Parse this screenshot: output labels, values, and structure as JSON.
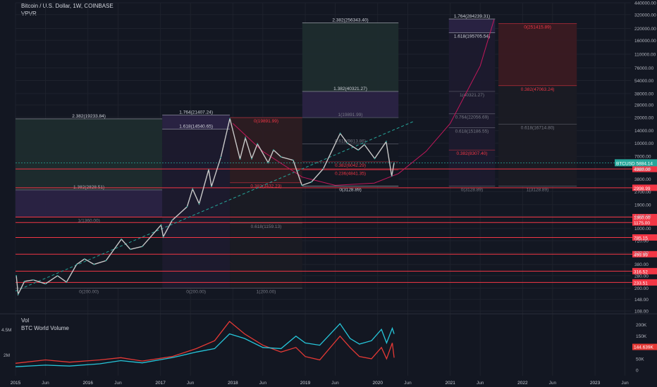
{
  "header": {
    "title": "Bitcoin / U.S. Dollar, 1W, COINBASE",
    "indicator": "VPVR"
  },
  "volume_pane": {
    "title": "Vol",
    "indicator": "BTC World Volume",
    "last_value": "144.639K",
    "axis_ticks": [
      {
        "label": "200K",
        "v": 200
      },
      {
        "label": "150K",
        "v": 150
      },
      {
        "label": "100K",
        "v": 100
      },
      {
        "label": "50K",
        "v": 50
      },
      {
        "label": "0",
        "v": 0
      }
    ],
    "left_ticks": [
      "4.5M",
      "2M"
    ]
  },
  "colors": {
    "background": "#131722",
    "support_line": "#f23645",
    "fib_red": "#f23645",
    "current_price": "#26a69a",
    "volume_cyan": "#26c6da",
    "volume_red": "#e53935",
    "curve_pink": "#c2185b",
    "trend_dashed": "#26a69a"
  },
  "chart_data": {
    "type": "line",
    "title": "Bitcoin / U.S. Dollar, 1W, COINBASE",
    "y_scale": "log",
    "ylim": [
      108,
      440000
    ],
    "xlim": [
      "2015-01-01",
      "2023-07-01"
    ],
    "grid": true,
    "price_axis_ticks": [
      440000,
      320000,
      220000,
      160000,
      110000,
      76000,
      54000,
      38000,
      28000,
      20000,
      14000,
      10000,
      7000,
      5000,
      3800,
      2700,
      1900,
      1400,
      1000,
      720,
      520,
      380,
      280,
      200,
      148,
      108
    ],
    "time_axis": [
      {
        "label": "2015",
        "date": "2015-01-01"
      },
      {
        "label": "Jun",
        "date": "2015-06-01"
      },
      {
        "label": "2016",
        "date": "2016-01-01"
      },
      {
        "label": "Jun",
        "date": "2016-06-01"
      },
      {
        "label": "2017",
        "date": "2017-01-01"
      },
      {
        "label": "Jun",
        "date": "2017-06-01"
      },
      {
        "label": "2018",
        "date": "2018-01-01"
      },
      {
        "label": "Jun",
        "date": "2018-06-01"
      },
      {
        "label": "2019",
        "date": "2019-01-01"
      },
      {
        "label": "Jun",
        "date": "2019-06-01"
      },
      {
        "label": "2020",
        "date": "2020-01-01"
      },
      {
        "label": "Jun",
        "date": "2020-06-01"
      },
      {
        "label": "2021",
        "date": "2021-01-01"
      },
      {
        "label": "Jun",
        "date": "2021-06-01"
      },
      {
        "label": "2022",
        "date": "2022-01-01"
      },
      {
        "label": "Jun",
        "date": "2022-06-01"
      },
      {
        "label": "2023",
        "date": "2023-01-01"
      },
      {
        "label": "Jun",
        "date": "2023-06-01"
      }
    ],
    "price_series": [
      [
        "2015-01-05",
        280
      ],
      [
        "2015-01-14",
        170
      ],
      [
        "2015-02-15",
        240
      ],
      [
        "2015-04-01",
        250
      ],
      [
        "2015-06-01",
        225
      ],
      [
        "2015-08-01",
        280
      ],
      [
        "2015-09-15",
        235
      ],
      [
        "2015-11-05",
        380
      ],
      [
        "2015-12-15",
        440
      ],
      [
        "2016-02-01",
        380
      ],
      [
        "2016-04-01",
        420
      ],
      [
        "2016-06-18",
        750
      ],
      [
        "2016-08-02",
        570
      ],
      [
        "2016-10-01",
        615
      ],
      [
        "2017-01-04",
        1100
      ],
      [
        "2017-01-15",
        800
      ],
      [
        "2017-03-01",
        1250
      ],
      [
        "2017-05-15",
        1800
      ],
      [
        "2017-06-12",
        2900
      ],
      [
        "2017-07-15",
        1950
      ],
      [
        "2017-09-01",
        4900
      ],
      [
        "2017-09-15",
        3100
      ],
      [
        "2017-11-01",
        6800
      ],
      [
        "2017-12-17",
        19400
      ],
      [
        "2018-02-06",
        6500
      ],
      [
        "2018-03-05",
        11500
      ],
      [
        "2018-04-06",
        6600
      ],
      [
        "2018-05-05",
        9800
      ],
      [
        "2018-06-28",
        5900
      ],
      [
        "2018-07-25",
        8300
      ],
      [
        "2018-09-01",
        6900
      ],
      [
        "2018-11-01",
        6300
      ],
      [
        "2018-12-15",
        3200
      ],
      [
        "2019-02-01",
        3500
      ],
      [
        "2019-04-02",
        5000
      ],
      [
        "2019-06-26",
        13000
      ],
      [
        "2019-08-01",
        10000
      ],
      [
        "2019-09-25",
        8300
      ],
      [
        "2019-10-26",
        9600
      ],
      [
        "2019-12-17",
        6600
      ],
      [
        "2020-02-13",
        10400
      ],
      [
        "2020-03-12",
        4100
      ],
      [
        "2020-03-24",
        5884
      ]
    ],
    "current_price": {
      "label": "BTCUSD",
      "value": "5884.14",
      "v": 5884.14
    },
    "support_levels": [
      {
        "value": "4980.00",
        "v": 4980
      },
      {
        "value": "2998.99",
        "v": 2998.99
      },
      {
        "value": "1360.00",
        "v": 1360
      },
      {
        "value": "1175.00",
        "v": 1175
      },
      {
        "value": "785.15",
        "v": 785.15
      },
      {
        "value": "499.99",
        "v": 499.99
      },
      {
        "value": "316.52",
        "v": 316.52
      },
      {
        "value": "233.51",
        "v": 233.51
      }
    ],
    "fib_boxes": [
      {
        "start": "2015-01-01",
        "end": "2017-01-10",
        "bottom": 200,
        "top": 19233.84,
        "color": "#26a69a",
        "bands": [
          {
            "from": 200,
            "to": 1360,
            "fill": "#131722"
          },
          {
            "from": 1360,
            "to": 2828.51,
            "fill": "#2a2344"
          },
          {
            "from": 2828.51,
            "to": 19233.84,
            "fill": "#1e2c2e"
          }
        ],
        "labels": [
          {
            "text": "2.382(19233.84)",
            "v": 19233.84,
            "pos": "above",
            "color": "#d1d4dc"
          },
          {
            "text": "1.382(2828.51)",
            "v": 2828.51,
            "pos": "above",
            "color": "#b2b5be"
          },
          {
            "text": "1(1360.00)",
            "v": 1360,
            "pos": "below",
            "color": "#787b86"
          },
          {
            "text": "0(200.00)",
            "v": 200,
            "pos": "below",
            "color": "#787b86"
          }
        ]
      },
      {
        "start": "2017-01-10",
        "end": "2017-12-17",
        "bottom": 200,
        "top": 21407.24,
        "color": "#7e57c2",
        "bands": [
          {
            "from": 200,
            "to": 14540.65,
            "fill": "#1c1a2e"
          },
          {
            "from": 14540.65,
            "to": 21407.24,
            "fill": "#2a2344"
          }
        ],
        "labels": [
          {
            "text": "1.764(21407.24)",
            "v": 21407.24,
            "pos": "above",
            "color": "#d1d4dc"
          },
          {
            "text": "1.618(14540.65)",
            "v": 14540.65,
            "pos": "above",
            "color": "#d1d4dc"
          },
          {
            "text": "0(200.00)",
            "v": 200,
            "pos": "below",
            "color": "#787b86"
          }
        ]
      },
      {
        "start": "2017-12-17",
        "end": "2018-12-17",
        "bottom": 200,
        "top": 19891.99,
        "color": "#f23645",
        "bands": [
          {
            "from": 3432.23,
            "to": 19891.99,
            "fill": "#2c1c22"
          },
          {
            "from": 200,
            "to": 3432.23,
            "fill": "#1a1b24"
          }
        ],
        "labels": [
          {
            "text": "0(19891.99)",
            "v": 19891.99,
            "pos": "below",
            "color": "#f23645"
          },
          {
            "text": "0.382(3432.23)",
            "v": 3432.23,
            "pos": "below",
            "color": "#f23645"
          },
          {
            "text": "0.618(1159.13)",
            "v": 1159.13,
            "pos": "below",
            "color": "#787b86"
          },
          {
            "text": "1(200.00)",
            "v": 200,
            "pos": "below",
            "color": "#787b86"
          }
        ]
      },
      {
        "start": "2018-12-17",
        "end": "2020-04-15",
        "bottom": 3128.89,
        "top": 256343.4,
        "color": "#26a69a",
        "bands": [
          {
            "from": 3128.89,
            "to": 19891.99,
            "fill": "#131722"
          },
          {
            "from": 19891.99,
            "to": 40321.27,
            "fill": "#2a2344"
          },
          {
            "from": 40321.27,
            "to": 256343.4,
            "fill": "#1e2c2e"
          }
        ],
        "labels": [
          {
            "text": "2.382(256343.40)",
            "v": 256343.4,
            "pos": "above",
            "color": "#d1d4dc"
          },
          {
            "text": "1.382(40321.27)",
            "v": 40321.27,
            "pos": "above",
            "color": "#d1d4dc"
          },
          {
            "text": "1(19891.99)",
            "v": 19891.99,
            "pos": "above",
            "color": "#787b86"
          },
          {
            "text": "0.618(9813.86)",
            "v": 9813.86,
            "pos": "above",
            "color": "#787b86"
          },
          {
            "text": "0.382(6042.29)",
            "v": 6042.29,
            "pos": "below",
            "color": "#f23645"
          },
          {
            "text": "0.236(4841.35)",
            "v": 4841.35,
            "pos": "below",
            "color": "#f23645"
          },
          {
            "text": "0(3128.89)",
            "v": 3128.89,
            "pos": "below",
            "color": "#d1d4dc"
          }
        ]
      },
      {
        "start": "2020-12-25",
        "end": "2021-08-15",
        "bottom": 3128.89,
        "top": 284239.31,
        "color": "#7e57c2",
        "bands": [
          {
            "from": 3128.89,
            "to": 195705.54,
            "fill": "#1c1a2e"
          },
          {
            "from": 195705.54,
            "to": 284239.31,
            "fill": "#2a2344"
          }
        ],
        "labels": [
          {
            "text": "1.764(284239.31)",
            "v": 284239.31,
            "pos": "above",
            "color": "#d1d4dc"
          },
          {
            "text": "1.618(195705.54)",
            "v": 195705.54,
            "pos": "below",
            "color": "#d1d4dc"
          },
          {
            "text": "1(40321.27)",
            "v": 40321.27,
            "pos": "below",
            "color": "#787b86"
          },
          {
            "text": "0.764(22056.69)",
            "v": 22056.69,
            "pos": "below",
            "color": "#787b86"
          },
          {
            "text": "0.618(15186.55)",
            "v": 15186.55,
            "pos": "below",
            "color": "#787b86"
          },
          {
            "text": "0.382(8307.40)",
            "v": 8307.4,
            "pos": "below",
            "color": "#f23645"
          },
          {
            "text": "0(3128.89)",
            "v": 3128.89,
            "pos": "below",
            "color": "#787b86"
          }
        ]
      },
      {
        "start": "2021-09-01",
        "end": "2022-10-01",
        "bottom": 3128.89,
        "top": 251415.89,
        "color": "#f23645",
        "bands": [
          {
            "from": 47063.24,
            "to": 251415.89,
            "fill": "#3a1a22"
          },
          {
            "from": 3128.89,
            "to": 47063.24,
            "fill": "#1a1b24"
          }
        ],
        "labels": [
          {
            "text": "0(251415.89)",
            "v": 251415.89,
            "pos": "below",
            "color": "#f23645"
          },
          {
            "text": "0.382(47063.24)",
            "v": 47063.24,
            "pos": "below",
            "color": "#f23645"
          },
          {
            "text": "0.618(16714.80)",
            "v": 16714.8,
            "pos": "below",
            "color": "#787b86"
          },
          {
            "text": "1(3128.89)",
            "v": 3128.89,
            "pos": "below",
            "color": "#787b86"
          }
        ]
      }
    ],
    "volume_series": {
      "cyan": [
        [
          "2015-01-01",
          15
        ],
        [
          "2015-06-01",
          22
        ],
        [
          "2015-10-01",
          18
        ],
        [
          "2016-03-01",
          28
        ],
        [
          "2016-06-15",
          42
        ],
        [
          "2016-10-01",
          32
        ],
        [
          "2017-03-01",
          55
        ],
        [
          "2017-07-01",
          80
        ],
        [
          "2017-10-01",
          95
        ],
        [
          "2017-12-15",
          160
        ],
        [
          "2018-03-01",
          140
        ],
        [
          "2018-06-01",
          100
        ],
        [
          "2018-09-01",
          95
        ],
        [
          "2018-11-15",
          150
        ],
        [
          "2019-01-01",
          120
        ],
        [
          "2019-03-15",
          110
        ],
        [
          "2019-06-25",
          205
        ],
        [
          "2019-08-15",
          140
        ],
        [
          "2019-10-01",
          115
        ],
        [
          "2019-12-01",
          130
        ],
        [
          "2020-01-20",
          180
        ],
        [
          "2020-02-15",
          120
        ],
        [
          "2020-03-15",
          185
        ],
        [
          "2020-03-24",
          160
        ]
      ],
      "red": [
        [
          "2015-01-01",
          30
        ],
        [
          "2015-06-01",
          45
        ],
        [
          "2015-10-01",
          35
        ],
        [
          "2016-03-01",
          45
        ],
        [
          "2016-06-15",
          55
        ],
        [
          "2016-10-01",
          40
        ],
        [
          "2017-03-01",
          60
        ],
        [
          "2017-07-01",
          95
        ],
        [
          "2017-10-01",
          130
        ],
        [
          "2017-12-15",
          215
        ],
        [
          "2018-03-01",
          160
        ],
        [
          "2018-06-01",
          110
        ],
        [
          "2018-09-01",
          80
        ],
        [
          "2018-11-15",
          100
        ],
        [
          "2019-01-01",
          60
        ],
        [
          "2019-03-15",
          45
        ],
        [
          "2019-06-25",
          150
        ],
        [
          "2019-08-15",
          100
        ],
        [
          "2019-10-01",
          60
        ],
        [
          "2019-12-01",
          50
        ],
        [
          "2020-01-20",
          100
        ],
        [
          "2020-02-15",
          50
        ],
        [
          "2020-03-15",
          120
        ],
        [
          "2020-03-24",
          55
        ]
      ]
    }
  }
}
